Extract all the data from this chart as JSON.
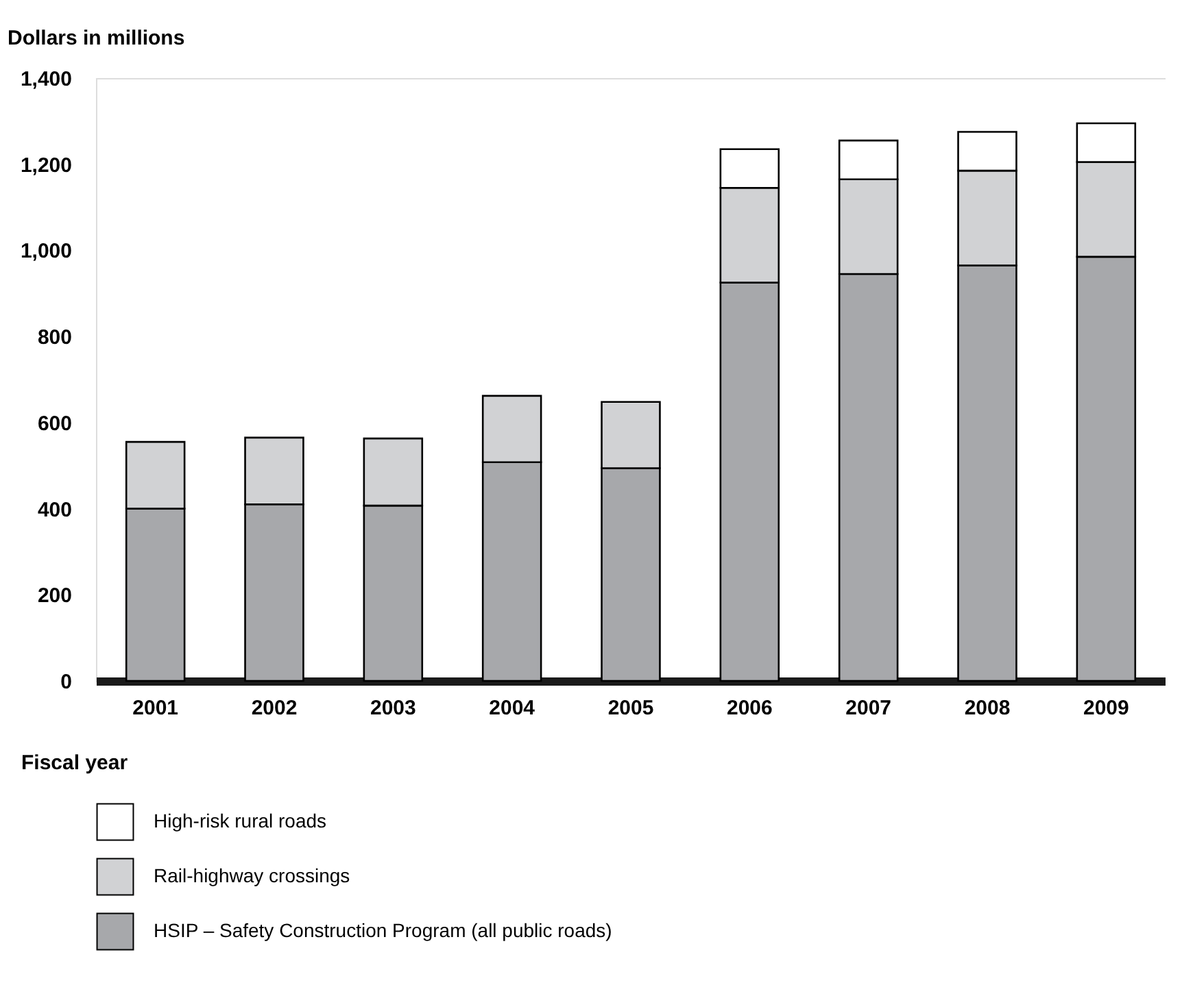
{
  "chart_data": {
    "type": "bar",
    "stacked": true,
    "ylabel": "Dollars in millions",
    "xlabel": "Fiscal year",
    "categories": [
      "2001",
      "2002",
      "2003",
      "2004",
      "2005",
      "2006",
      "2007",
      "2008",
      "2009"
    ],
    "series": [
      {
        "name": "HSIP – Safety Construction Program (all public roads)",
        "color": "#a7a8ab",
        "values": [
          400,
          410,
          407,
          508,
          494,
          925,
          945,
          965,
          985
        ]
      },
      {
        "name": "Rail-highway crossings",
        "color": "#d1d2d4",
        "values": [
          155,
          155,
          156,
          154,
          154,
          220,
          220,
          220,
          220
        ]
      },
      {
        "name": "High-risk rural roads",
        "color": "#ffffff",
        "values": [
          null,
          null,
          null,
          null,
          null,
          90,
          90,
          90,
          90
        ]
      }
    ],
    "ylim": [
      0,
      1400
    ],
    "yticks": [
      0,
      200,
      400,
      600,
      800,
      {
        "value": 1000,
        "label": "1,000"
      },
      {
        "value": 1200,
        "label": "1,200"
      },
      {
        "value": 1400,
        "label": "1,400"
      }
    ],
    "grid": false,
    "legend": "bottom"
  }
}
